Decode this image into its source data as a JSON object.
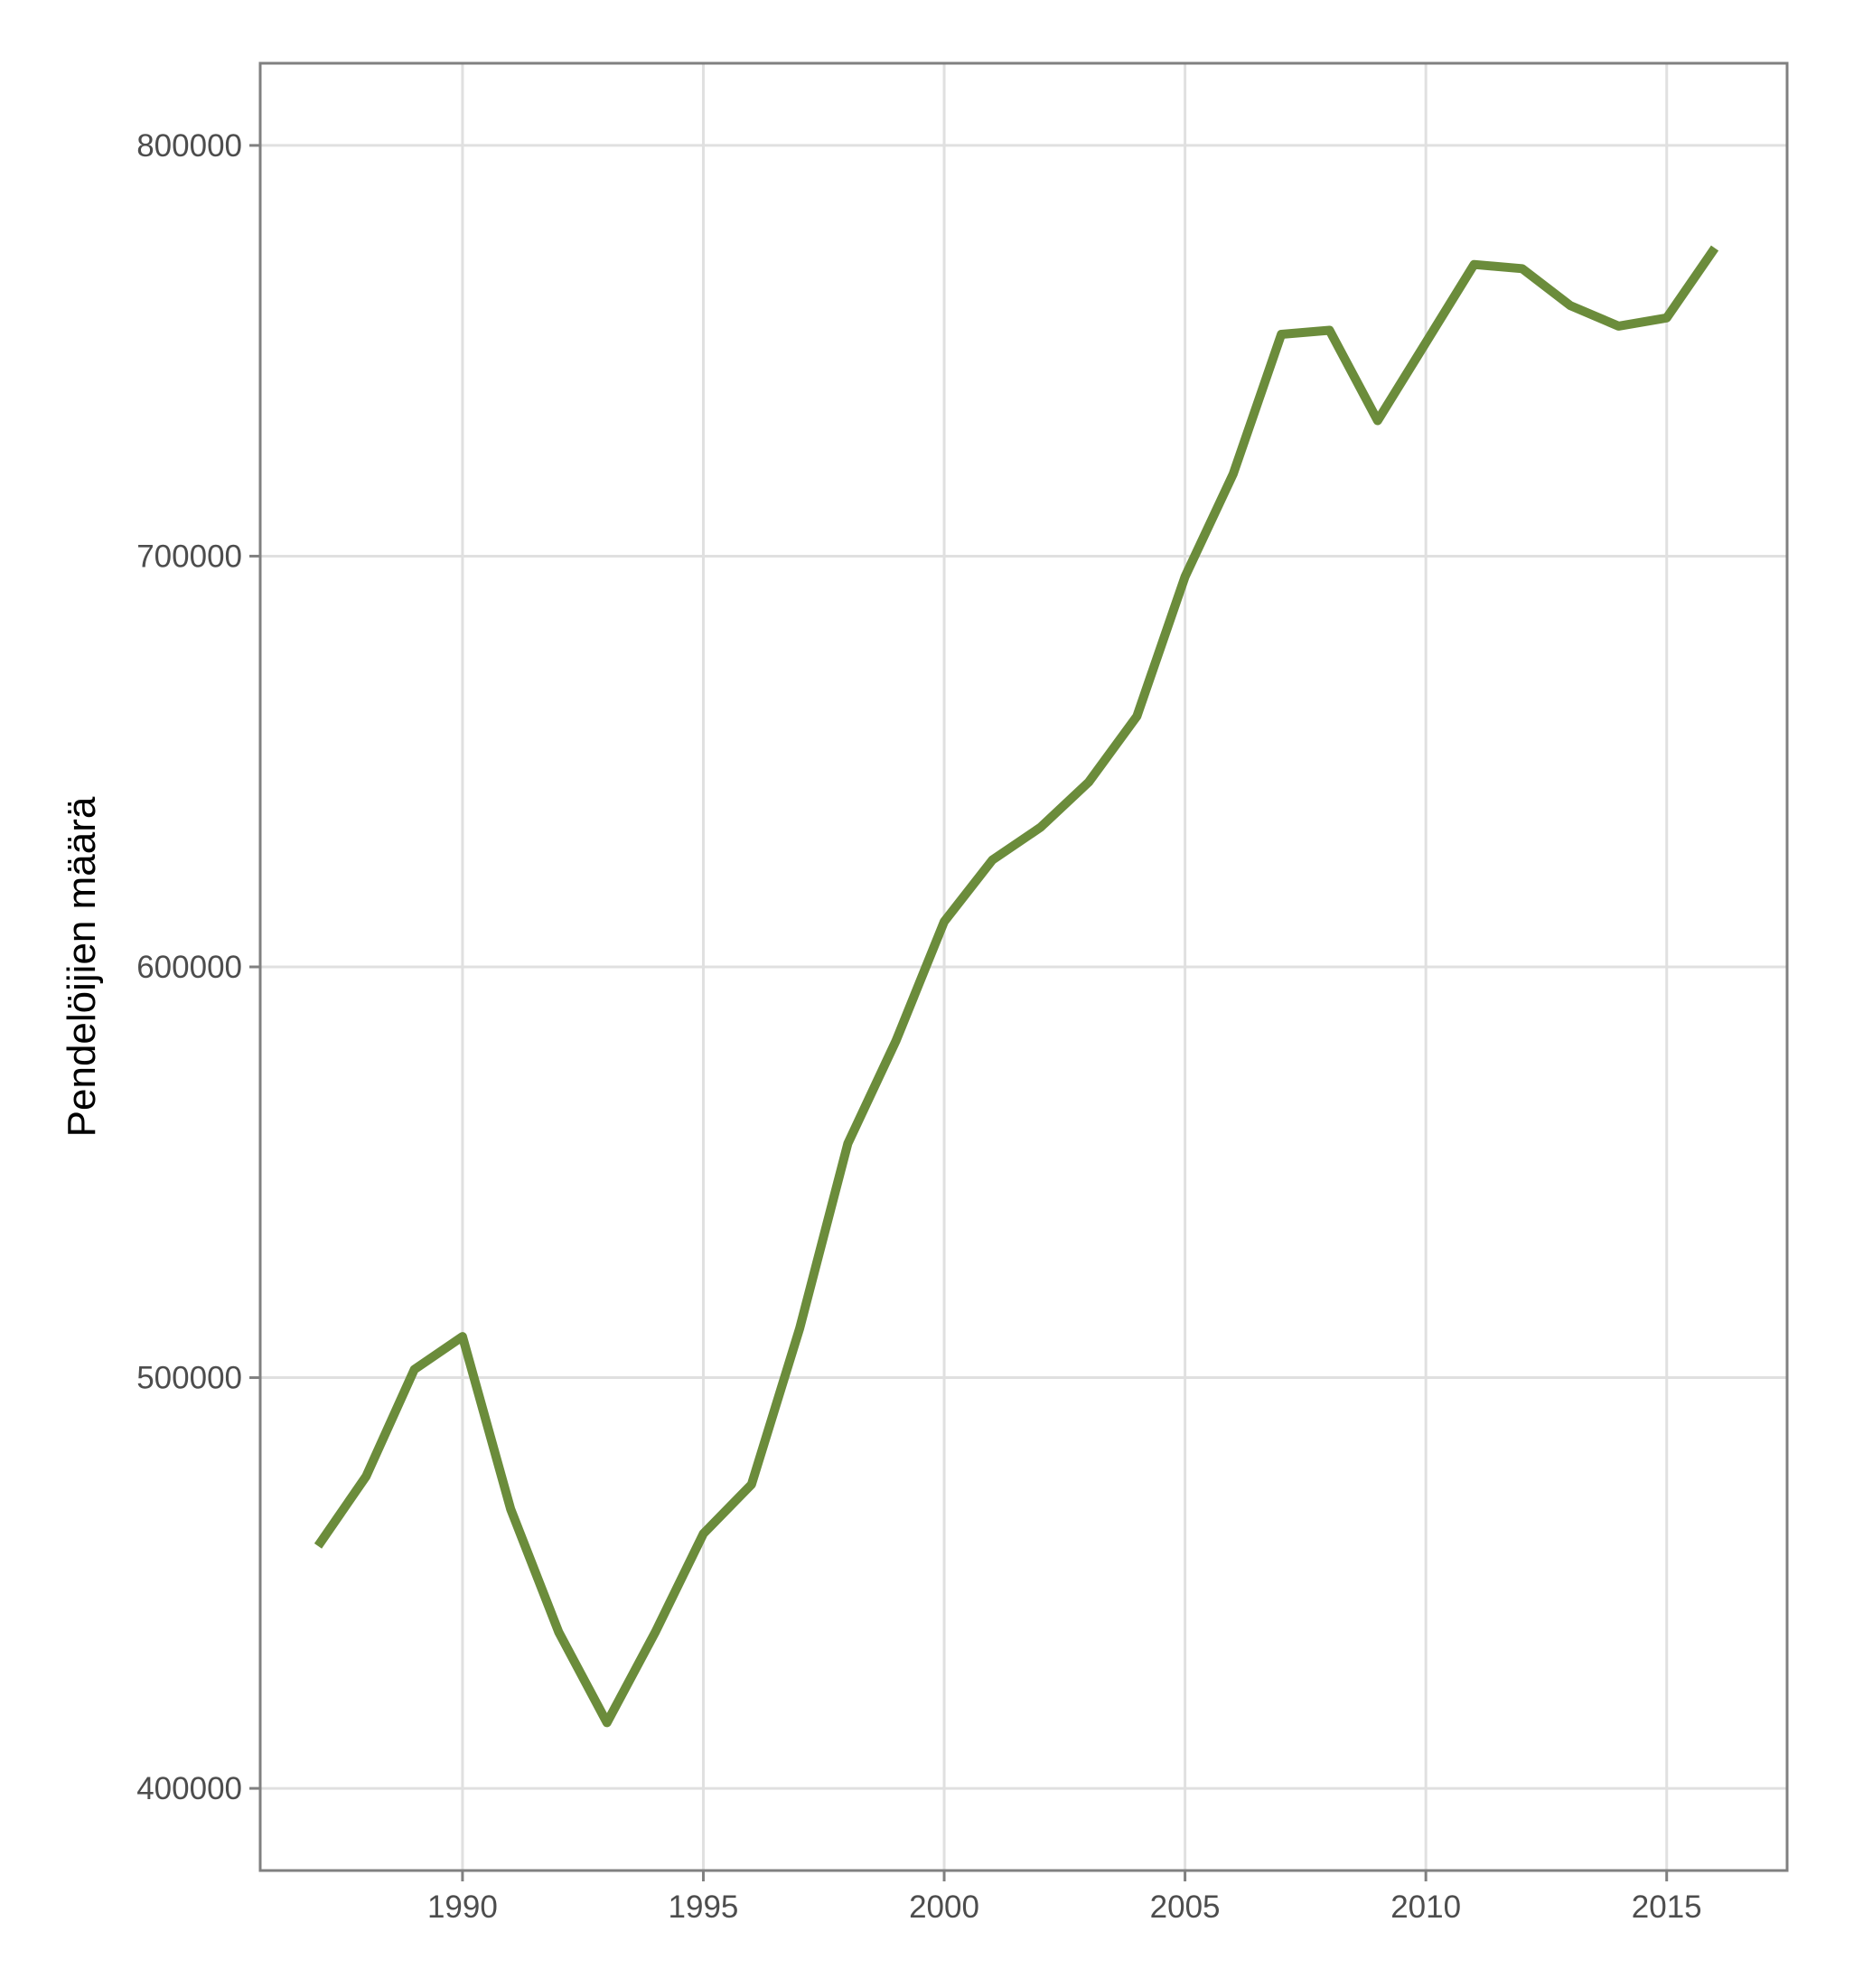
{
  "chart_data": {
    "type": "line",
    "title": "",
    "xlabel": "",
    "ylabel": "Pendelöijien määrä",
    "xlim": [
      1985.8,
      2017.5
    ],
    "ylim": [
      380000,
      820000
    ],
    "xticks": [
      1990,
      1995,
      2000,
      2005,
      2010,
      2015
    ],
    "yticks": [
      400000,
      500000,
      600000,
      700000,
      800000
    ],
    "xtick_labels": [
      "1990",
      "1995",
      "2000",
      "2005",
      "2010",
      "2015"
    ],
    "ytick_labels": [
      "400000",
      "500000",
      "600000",
      "700000",
      "800000"
    ],
    "grid": true,
    "colors": {
      "line": "#6b8c3b",
      "grid": "#e0e0e0",
      "frame": "#808080",
      "tick_text": "#4d4d4d"
    },
    "series": [
      {
        "x": [
          1987,
          1988,
          1989,
          1990,
          1991,
          1992,
          1993,
          1994,
          1995,
          1996,
          1997,
          1998,
          1999,
          2000,
          2001,
          2002,
          2003,
          2004,
          2005,
          2006,
          2007,
          2008,
          2009,
          2010,
          2011,
          2012,
          2013,
          2014,
          2015,
          2016
        ],
        "y": [
          459000,
          476000,
          502000,
          510000,
          468000,
          438000,
          416000,
          438000,
          462000,
          474000,
          512000,
          557000,
          582000,
          611000,
          626000,
          634000,
          645000,
          661000,
          695000,
          720000,
          754000,
          755000,
          733000,
          752000,
          771000,
          770000,
          761000,
          756000,
          758000,
          775000
        ]
      }
    ]
  }
}
